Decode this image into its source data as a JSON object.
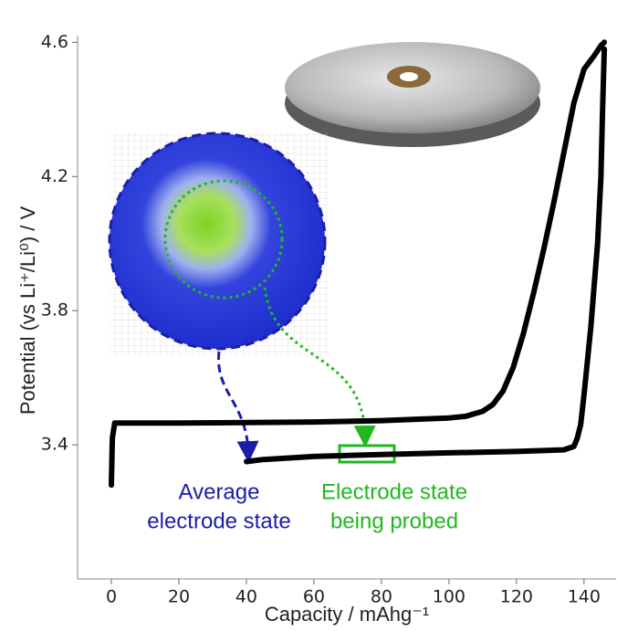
{
  "chart_data": {
    "type": "line",
    "xlabel": "Capacity / mAhg⁻¹",
    "ylabel": "Potential (vs Li⁺/Li⁰) / V",
    "xlim": [
      -10,
      149.5
    ],
    "ylim": [
      3.0,
      4.62
    ],
    "xticks": [
      0,
      20,
      40,
      60,
      80,
      100,
      120,
      140
    ],
    "yticks": [
      3.4,
      3.8,
      4.2,
      4.6
    ],
    "series": [
      {
        "color": "#000000",
        "x": [
          0,
          0.3,
          1,
          5,
          20,
          40,
          60,
          80,
          100,
          105,
          110,
          113,
          116,
          119,
          122,
          125,
          128,
          131,
          134,
          137,
          140,
          143,
          145,
          146
        ],
        "values": [
          3.28,
          3.42,
          3.465,
          3.465,
          3.465,
          3.466,
          3.468,
          3.472,
          3.48,
          3.485,
          3.5,
          3.52,
          3.56,
          3.63,
          3.73,
          3.85,
          3.98,
          4.12,
          4.27,
          4.42,
          4.52,
          4.56,
          4.59,
          4.6
        ]
      },
      {
        "color": "#000000",
        "x": [
          146,
          145.5,
          145,
          144,
          142,
          140,
          139,
          138,
          137,
          134,
          120,
          100,
          80,
          60,
          45,
          40
        ],
        "values": [
          4.58,
          4.4,
          4.2,
          4.0,
          3.75,
          3.55,
          3.46,
          3.42,
          3.395,
          3.385,
          3.38,
          3.376,
          3.371,
          3.365,
          3.356,
          3.35
        ]
      }
    ],
    "annotations": [
      {
        "lines": [
          "Average",
          "electrode state"
        ],
        "color": "#1c1caa"
      },
      {
        "lines": [
          "Electrode state",
          "being probed"
        ],
        "color": "#22b722"
      }
    ]
  }
}
